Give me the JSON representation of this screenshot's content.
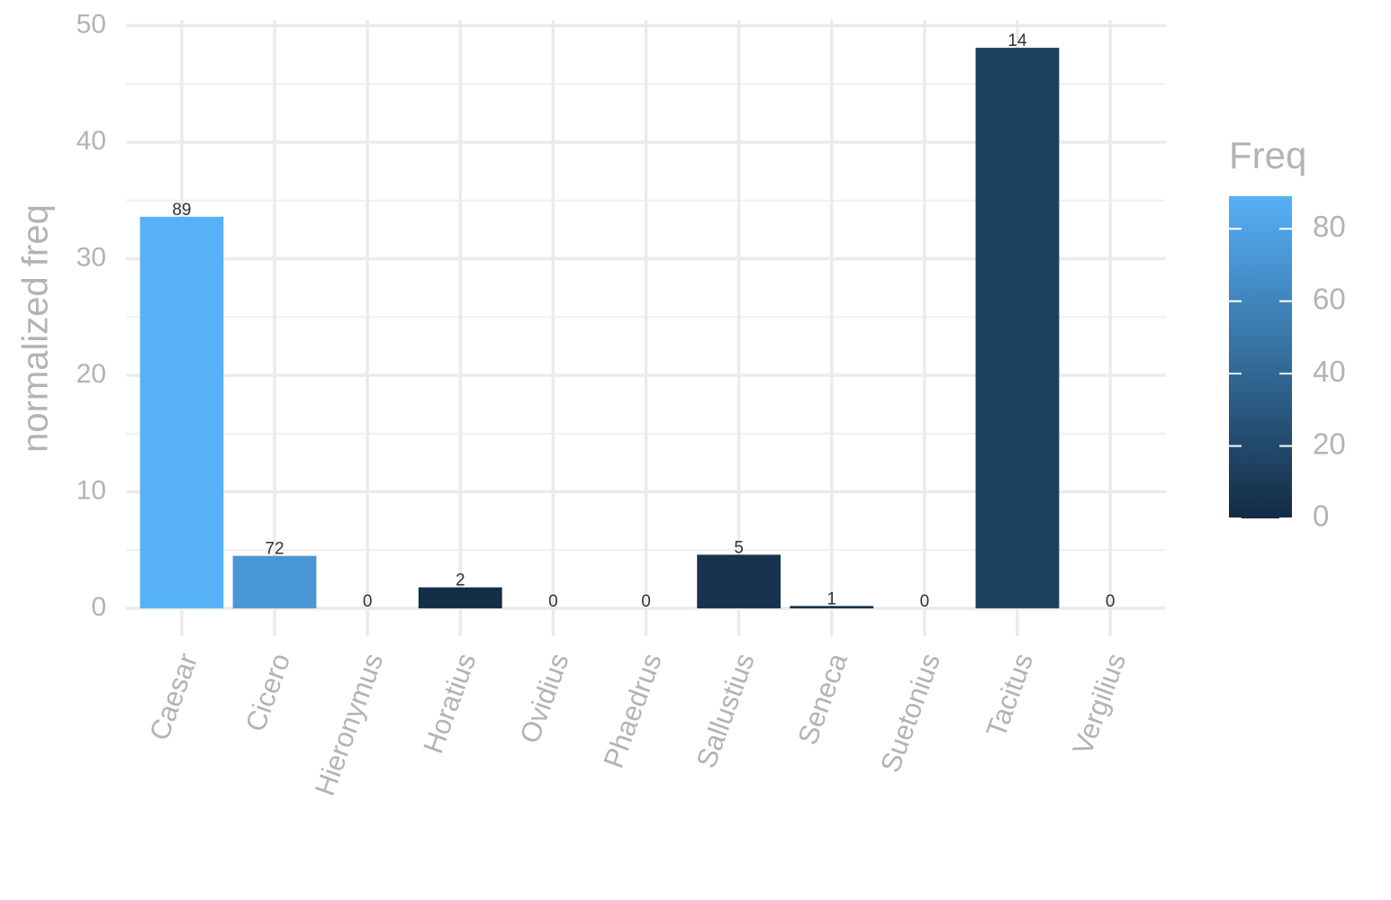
{
  "chart_data": {
    "type": "bar",
    "y_label": "normalized freq",
    "categories": [
      "Caesar",
      "Cicero",
      "Hieronymus",
      "Horatius",
      "Ovidius",
      "Phaedrus",
      "Sallustius",
      "Seneca",
      "Suetonius",
      "Tacitus",
      "Vergilius"
    ],
    "values": [
      33.6,
      4.5,
      0,
      1.8,
      0,
      0,
      4.6,
      0.2,
      0,
      48.1,
      0
    ],
    "freq": [
      89,
      72,
      0,
      2,
      0,
      0,
      5,
      1,
      0,
      14,
      0
    ],
    "ylim": [
      -2.4,
      50.5
    ],
    "yticks": [
      0,
      10,
      20,
      30,
      40,
      50
    ],
    "grid": true,
    "color_scale": {
      "title": "Freq",
      "low": "#132B43",
      "high": "#56B1F7",
      "lim": [
        0,
        89
      ],
      "ticks": [
        0,
        20,
        40,
        60,
        80
      ]
    }
  }
}
